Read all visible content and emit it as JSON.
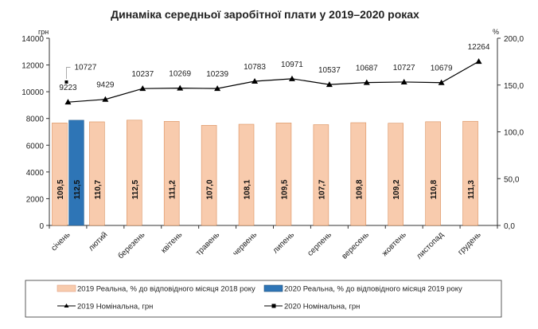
{
  "chart_data": {
    "type": "bar+line",
    "title": "Динаміка середньої заробітної плати у 2019–2020 роках",
    "left_axis": {
      "unit": "грн",
      "range": [
        0,
        14000
      ],
      "ticks": [
        "0",
        "2000",
        "4000",
        "6000",
        "8000",
        "10000",
        "12000",
        "14000"
      ]
    },
    "right_axis": {
      "unit": "%",
      "range": [
        0,
        200
      ],
      "ticks": [
        "0,0",
        "50,0",
        "100,0",
        "150,0",
        "200,0"
      ]
    },
    "categories": [
      "січень",
      "лютий",
      "березень",
      "квітень",
      "травень",
      "червень",
      "липень",
      "серпень",
      "вересень",
      "жовтень",
      "листопад",
      "грудень"
    ],
    "series": [
      {
        "name": "2019 Реальна, % до відповідного місяця 2018 року",
        "type": "bar",
        "axis": "right",
        "color": "#f8cbad",
        "values": [
          109.5,
          110.7,
          112.5,
          111.2,
          107.0,
          108.1,
          109.5,
          107.7,
          109.8,
          109.2,
          110.8,
          111.3
        ],
        "labels": [
          "109,5",
          "110,7",
          "112,5",
          "111,2",
          "107,0",
          "108,1",
          "109,5",
          "107,7",
          "109,8",
          "109,2",
          "110,8",
          "111,3"
        ]
      },
      {
        "name": "2020 Реальна, % до відповідного місяця 2019 року",
        "type": "bar",
        "axis": "right",
        "color": "#2e75b6",
        "values": [
          112.5,
          null,
          null,
          null,
          null,
          null,
          null,
          null,
          null,
          null,
          null,
          null
        ],
        "labels": [
          "112,5",
          "",
          "",
          "",
          "",
          "",
          "",
          "",
          "",
          "",
          "",
          ""
        ]
      },
      {
        "name": "2019 Номінальна, грн",
        "type": "line",
        "axis": "left",
        "marker": "triangle",
        "color": "#000000",
        "values": [
          9223,
          9429,
          10237,
          10269,
          10239,
          10783,
          10971,
          10537,
          10687,
          10727,
          10679,
          12264
        ]
      },
      {
        "name": "2020 Номінальна, грн",
        "type": "line",
        "axis": "left",
        "marker": "square",
        "color": "#000000",
        "values": [
          10727,
          null,
          null,
          null,
          null,
          null,
          null,
          null,
          null,
          null,
          null,
          null
        ]
      }
    ],
    "legend": "bottom",
    "grid": false
  }
}
